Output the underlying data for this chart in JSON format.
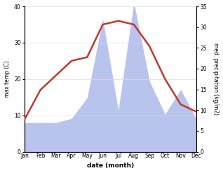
{
  "months": [
    "Jan",
    "Feb",
    "Mar",
    "Apr",
    "May",
    "Jun",
    "Jul",
    "Aug",
    "Sep",
    "Oct",
    "Nov",
    "Dec"
  ],
  "month_indices": [
    0,
    1,
    2,
    3,
    4,
    5,
    6,
    7,
    8,
    9,
    10,
    11
  ],
  "temperature": [
    9,
    17,
    21,
    25,
    26,
    35,
    36,
    35,
    29,
    20,
    13,
    11
  ],
  "precipitation": [
    7,
    7,
    7,
    8,
    13,
    32,
    10,
    36,
    17,
    9,
    15,
    8
  ],
  "temp_color": "#c0392b",
  "precip_color_fill": "#b8c4ee",
  "temp_ylim": [
    0,
    40
  ],
  "precip_ylim": [
    0,
    35
  ],
  "temp_yticks": [
    0,
    10,
    20,
    30,
    40
  ],
  "precip_yticks": [
    0,
    5,
    10,
    15,
    20,
    25,
    30,
    35
  ],
  "xlabel": "date (month)",
  "ylabel_left": "max temp (C)",
  "ylabel_right": "med. precipitation (kg/m2)",
  "background_color": "#ffffff",
  "line_width": 1.8,
  "grid_color": "#dddddd"
}
